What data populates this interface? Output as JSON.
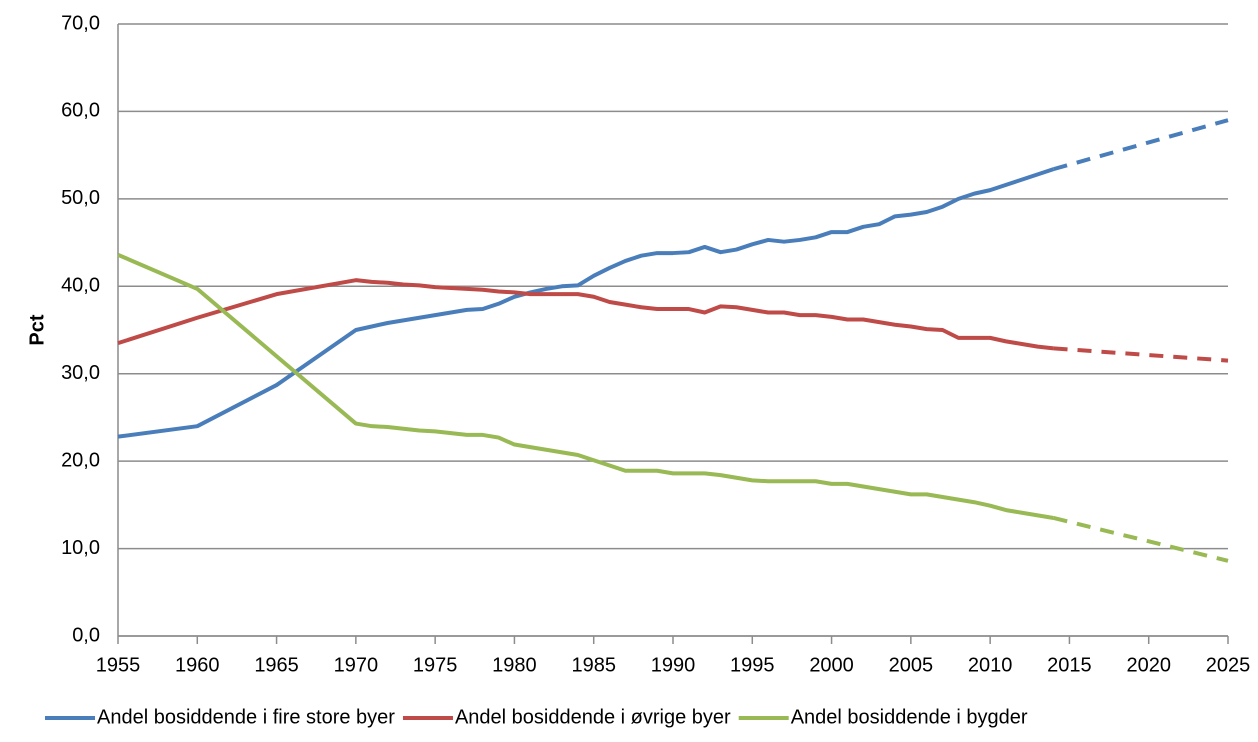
{
  "chart_data": {
    "type": "line",
    "y_label": "Pct",
    "x": [
      1955,
      1960,
      1965,
      1970,
      1971,
      1972,
      1973,
      1974,
      1975,
      1976,
      1977,
      1978,
      1979,
      1980,
      1981,
      1982,
      1983,
      1984,
      1985,
      1986,
      1987,
      1988,
      1989,
      1990,
      1991,
      1992,
      1993,
      1994,
      1995,
      1996,
      1997,
      1998,
      1999,
      2000,
      2001,
      2002,
      2003,
      2004,
      2005,
      2006,
      2007,
      2008,
      2009,
      2010,
      2011,
      2012,
      2013,
      2014,
      2025
    ],
    "forecast_from": 2014,
    "series": [
      {
        "name": "Andel bosiddende i fire store byer",
        "color": "#4a7ebb",
        "values": [
          22.8,
          24.0,
          28.7,
          35.0,
          35.4,
          35.8,
          36.1,
          36.4,
          36.7,
          37.0,
          37.3,
          37.4,
          38.0,
          38.8,
          39.3,
          39.7,
          40.0,
          40.1,
          41.2,
          42.1,
          42.9,
          43.5,
          43.8,
          43.8,
          43.9,
          44.5,
          43.9,
          44.2,
          44.8,
          45.3,
          45.1,
          45.3,
          45.6,
          46.2,
          46.2,
          46.8,
          47.1,
          48.0,
          48.2,
          48.5,
          49.1,
          50.0,
          50.6,
          51.0,
          51.6,
          52.2,
          52.8,
          53.4,
          59.0
        ]
      },
      {
        "name": "Andel bosiddende i øvrige byer",
        "color": "#be4b48",
        "values": [
          33.5,
          36.4,
          39.1,
          40.7,
          40.5,
          40.4,
          40.2,
          40.1,
          39.9,
          39.8,
          39.7,
          39.6,
          39.4,
          39.3,
          39.1,
          39.1,
          39.1,
          39.1,
          38.8,
          38.2,
          37.9,
          37.6,
          37.4,
          37.4,
          37.4,
          37.0,
          37.7,
          37.6,
          37.3,
          37.0,
          37.0,
          36.7,
          36.7,
          36.5,
          36.2,
          36.2,
          35.9,
          35.6,
          35.4,
          35.1,
          35.0,
          34.1,
          34.1,
          34.1,
          33.7,
          33.4,
          33.1,
          32.9,
          31.5
        ]
      },
      {
        "name": "Andel bosiddende i bygder",
        "color": "#98b954",
        "values": [
          43.6,
          39.7,
          32.0,
          24.3,
          24.0,
          23.9,
          23.7,
          23.5,
          23.4,
          23.2,
          23.0,
          23.0,
          22.7,
          21.9,
          21.6,
          21.3,
          21.0,
          20.7,
          20.1,
          19.5,
          18.9,
          18.9,
          18.9,
          18.6,
          18.6,
          18.6,
          18.4,
          18.1,
          17.8,
          17.7,
          17.7,
          17.7,
          17.7,
          17.4,
          17.4,
          17.1,
          16.8,
          16.5,
          16.2,
          16.2,
          15.9,
          15.6,
          15.3,
          14.9,
          14.4,
          14.1,
          13.8,
          13.5,
          8.6
        ]
      }
    ],
    "xlim": [
      1955,
      2025
    ],
    "xticks": [
      1955,
      1960,
      1965,
      1970,
      1975,
      1980,
      1985,
      1990,
      1995,
      2000,
      2005,
      2010,
      2015,
      2020,
      2025
    ],
    "ylim": [
      0,
      70
    ],
    "yticks": [
      {
        "value": 0,
        "label": "0,0"
      },
      {
        "value": 10,
        "label": "10,0"
      },
      {
        "value": 20,
        "label": "20,0"
      },
      {
        "value": 30,
        "label": "30,0"
      },
      {
        "value": 40,
        "label": "40,0"
      },
      {
        "value": 50,
        "label": "50,0"
      },
      {
        "value": 60,
        "label": "60,0"
      },
      {
        "value": 70,
        "label": "70,0"
      }
    ],
    "grid": true,
    "legend": "bottom"
  }
}
